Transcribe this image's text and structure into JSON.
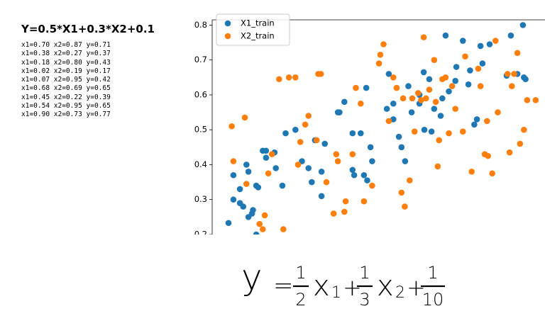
{
  "left_panel": {
    "title": "Y=0.5*X1+0.3*X2+0.1",
    "rows": [
      "x1=0.70 x2=0.87 y=0.71",
      "x1=0.38 x2=0.27 y=0.37",
      "x1=0.18 x2=0.80 y=0.43",
      "x1=0.02 x2=0.19 y=0.17",
      "x1=0.07 x2=0.95 y=0.42",
      "x1=0.68 x2=0.69 y=0.65",
      "x1=0.45 x2=0.22 y=0.39",
      "x1=0.54 x2=0.95 y=0.65",
      "x1=0.90 x2=0.73 y=0.77"
    ]
  },
  "chart_data": {
    "type": "scatter",
    "xlim": [
      -0.035,
      1.0
    ],
    "ylim": [
      0.2,
      0.815
    ],
    "yticks": [
      0.2,
      0.3,
      0.4,
      0.5,
      0.6,
      0.7,
      0.8
    ],
    "legend": "upper left",
    "series": [
      {
        "name": "X1_train",
        "color": "#1f77b4",
        "x": [
          0.015,
          0.03,
          0.03,
          0.07,
          0.076,
          0.05,
          0.05,
          0.06,
          0.076,
          0.09,
          0.1,
          0.106,
          0.12,
          0.13,
          0.13,
          0.156,
          0.16,
          0.1,
          0.087,
          0.19,
          0.22,
          0.18,
          0.24,
          0.26,
          0.27,
          0.28,
          0.3,
          0.3,
          0.31,
          0.35,
          0.355,
          0.37,
          0.395,
          0.395,
          0.4,
          0.42,
          0.43,
          0.437,
          0.44,
          0.45,
          0.455,
          0.5,
          0.506,
          0.52,
          0.52,
          0.537,
          0.545,
          0.556,
          0.566,
          0.576,
          0.6,
          0.6,
          0.613,
          0.615,
          0.63,
          0.637,
          0.645,
          0.665,
          0.67,
          0.68,
          0.69,
          0.71,
          0.713,
          0.733,
          0.75,
          0.755,
          0.768,
          0.776,
          0.787,
          0.793,
          0.815,
          0.867,
          0.88,
          0.9,
          0.917,
          0.92,
          0.925
        ],
        "values": [
          0.233,
          0.3,
          0.37,
          0.4,
          0.38,
          0.33,
          0.29,
          0.28,
          0.25,
          0.27,
          0.34,
          0.335,
          0.44,
          0.44,
          0.42,
          0.435,
          0.39,
          0.2,
          0.26,
          0.49,
          0.5,
          0.34,
          0.41,
          0.39,
          0.35,
          0.47,
          0.38,
          0.31,
          0.46,
          0.55,
          0.55,
          0.58,
          0.49,
          0.385,
          0.37,
          0.49,
          0.37,
          0.62,
          0.355,
          0.45,
          0.41,
          0.56,
          0.66,
          0.53,
          0.575,
          0.48,
          0.45,
          0.41,
          0.625,
          0.55,
          0.575,
          0.6,
          0.665,
          0.5,
          0.645,
          0.495,
          0.56,
          0.54,
          0.59,
          0.77,
          0.61,
          0.64,
          0.68,
          0.755,
          0.63,
          0.67,
          0.515,
          0.53,
          0.74,
          0.69,
          0.745,
          0.655,
          0.77,
          0.66,
          0.8,
          0.65,
          0.645
        ]
      },
      {
        "name": "X2_train",
        "color": "#ff7f0e",
        "x": [
          0.025,
          0.03,
          0.065,
          0.07,
          0.11,
          0.12,
          0.126,
          0.137,
          0.148,
          0.17,
          0.183,
          0.2,
          0.22,
          0.228,
          0.235,
          0.25,
          0.26,
          0.285,
          0.29,
          0.298,
          0.315,
          0.337,
          0.345,
          0.35,
          0.37,
          0.374,
          0.395,
          0.405,
          0.42,
          0.43,
          0.455,
          0.476,
          0.48,
          0.49,
          0.506,
          0.52,
          0.53,
          0.545,
          0.55,
          0.555,
          0.57,
          0.578,
          0.585,
          0.596,
          0.605,
          0.613,
          0.62,
          0.63,
          0.645,
          0.65,
          0.656,
          0.66,
          0.67,
          0.68,
          0.69,
          0.7,
          0.71,
          0.733,
          0.74,
          0.76,
          0.78,
          0.787,
          0.8,
          0.807,
          0.81,
          0.823,
          0.833,
          0.84,
          0.87,
          0.876,
          0.883,
          0.89,
          0.9,
          0.908,
          0.92,
          0.93,
          0.956
        ],
        "values": [
          0.51,
          0.41,
          0.535,
          0.345,
          0.23,
          0.215,
          0.255,
          0.375,
          0.43,
          0.645,
          0.215,
          0.65,
          0.65,
          0.4,
          0.465,
          0.515,
          0.54,
          0.47,
          0.66,
          0.66,
          0.35,
          0.26,
          0.43,
          0.41,
          0.265,
          0.295,
          0.43,
          0.62,
          0.575,
          0.295,
          0.34,
          0.69,
          0.715,
          0.745,
          0.525,
          0.65,
          0.62,
          0.32,
          0.59,
          0.28,
          0.355,
          0.59,
          0.495,
          0.605,
          0.585,
          0.765,
          0.59,
          0.615,
          0.7,
          0.58,
          0.395,
          0.47,
          0.645,
          0.65,
          0.49,
          0.625,
          0.56,
          0.495,
          0.71,
          0.38,
          0.675,
          0.625,
          0.43,
          0.525,
          0.425,
          0.375,
          0.755,
          0.55,
          0.66,
          0.435,
          0.625,
          0.66,
          0.72,
          0.46,
          0.5,
          0.585,
          0.585
        ]
      }
    ]
  },
  "handwritten_equation": {
    "lhs": "y",
    "eq": "=",
    "terms": [
      {
        "num": "1",
        "den": "2",
        "var": "x",
        "sub": "1"
      },
      {
        "op": "+",
        "num": "1",
        "den": "3",
        "var": "x",
        "sub": "2"
      },
      {
        "op": "+",
        "num": "1",
        "den": "10"
      }
    ]
  }
}
